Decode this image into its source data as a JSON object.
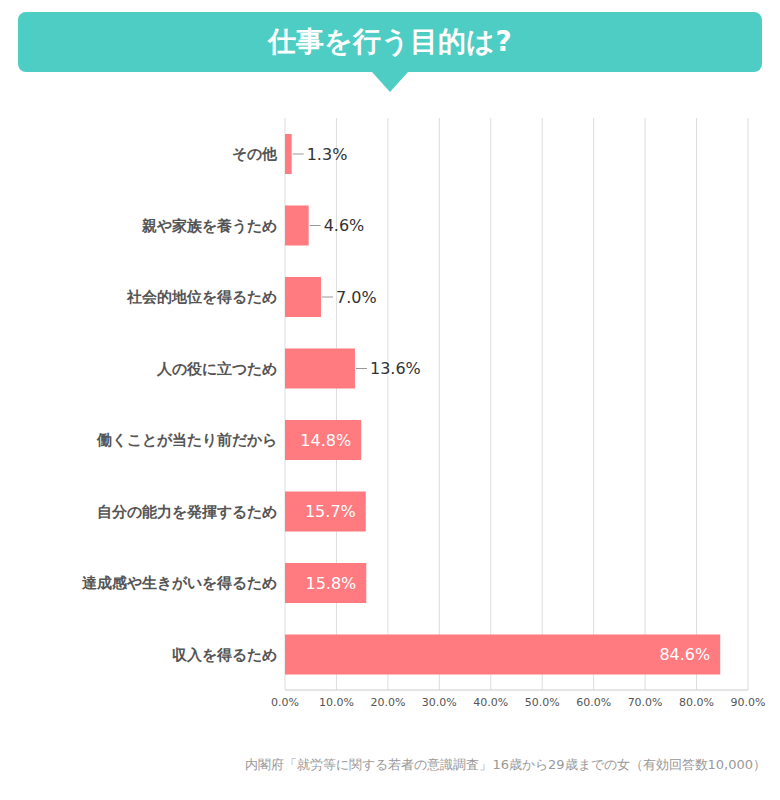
{
  "chart_data": {
    "type": "bar",
    "title": "仕事を行う目的は?",
    "source": "内閣府「就労等に関する若者の意識調査」16歳から29歳までの女（有効回答数10,000）",
    "orientation": "horizontal",
    "categories": [
      "その他",
      "親や家族を養うため",
      "社会的地位を得るため",
      "人の役に立つため",
      "働くことが当たり前だから",
      "自分の能力を発揮するため",
      "達成感や生きがいを得るため",
      "収入を得るため"
    ],
    "values": [
      1.3,
      4.6,
      7.0,
      13.6,
      14.8,
      15.7,
      15.8,
      84.6
    ],
    "value_labels": [
      "1.3%",
      "4.6%",
      "7.0%",
      "13.6%",
      "14.8%",
      "15.7%",
      "15.8%",
      "84.6%"
    ],
    "color": "#ff7b80",
    "xlim": [
      0,
      90
    ],
    "xticks": [
      {
        "value": 0,
        "label": "0.0%"
      },
      {
        "value": 10,
        "label": "10.0%"
      },
      {
        "value": 20,
        "label": "20.0%"
      },
      {
        "value": 30,
        "label": "30.0%"
      },
      {
        "value": 40,
        "label": "40.0%"
      },
      {
        "value": 50,
        "label": "50.0%"
      },
      {
        "value": 60,
        "label": "60.0%"
      },
      {
        "value": 70,
        "label": "70.0%"
      },
      {
        "value": 80,
        "label": "80.0%"
      },
      {
        "value": 90,
        "label": "90.0%"
      }
    ],
    "grid": true,
    "data_labels": true
  }
}
